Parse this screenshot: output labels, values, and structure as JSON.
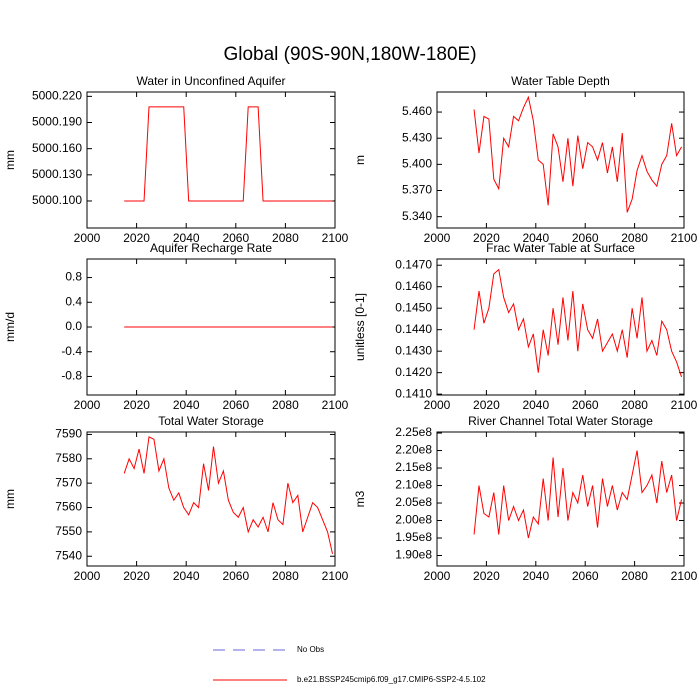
{
  "title": "Global (90S-90N,180W-180E)",
  "legend": [
    {
      "name": "No Obs",
      "color": "#6a6ad8",
      "dashed": true
    },
    {
      "name": "b.e21.BSSP245cmip6.f09_g17.CMIP6-SSP2-4.5.102",
      "color": "#ff0000",
      "dashed": false
    }
  ],
  "chart_data": [
    {
      "type": "line",
      "title": "Water in Unconfined Aquifer",
      "y_label": "mm",
      "color": "#ff0000",
      "x": [
        2015,
        2017,
        2019,
        2021,
        2023,
        2025,
        2027,
        2029,
        2031,
        2033,
        2035,
        2037,
        2039,
        2041,
        2043,
        2045,
        2047,
        2049,
        2051,
        2053,
        2055,
        2057,
        2059,
        2061,
        2063,
        2065,
        2067,
        2069,
        2071,
        2073,
        2075,
        2077,
        2079,
        2081,
        2083,
        2085,
        2087,
        2089,
        2091,
        2093,
        2095,
        2097,
        2099
      ],
      "values": [
        5000.1,
        5000.1,
        5000.1,
        5000.1,
        5000.1,
        5000.208,
        5000.208,
        5000.208,
        5000.208,
        5000.208,
        5000.208,
        5000.208,
        5000.208,
        5000.1,
        5000.1,
        5000.1,
        5000.1,
        5000.1,
        5000.1,
        5000.1,
        5000.1,
        5000.1,
        5000.1,
        5000.1,
        5000.1,
        5000.208,
        5000.208,
        5000.208,
        5000.1,
        5000.1,
        5000.1,
        5000.1,
        5000.1,
        5000.1,
        5000.1,
        5000.1,
        5000.1,
        5000.1,
        5000.1,
        5000.1,
        5000.1,
        5000.1,
        5000.1
      ],
      "xlim": [
        2000,
        2100
      ],
      "xticks": [
        2000,
        2020,
        2040,
        2060,
        2080,
        2100
      ],
      "ylim": [
        5000.069,
        5000.225
      ],
      "yticks": [
        {
          "value": 5000.1,
          "label": "5000.100"
        },
        {
          "value": 5000.13,
          "label": "5000.130"
        },
        {
          "value": 5000.16,
          "label": "5000.160"
        },
        {
          "value": 5000.19,
          "label": "5000.190"
        },
        {
          "value": 5000.22,
          "label": "5000.220"
        }
      ]
    },
    {
      "type": "line",
      "title": "Water Table Depth",
      "y_label": "m",
      "color": "#ff0000",
      "x": [
        2015,
        2017,
        2019,
        2021,
        2023,
        2025,
        2027,
        2029,
        2031,
        2033,
        2035,
        2037,
        2039,
        2041,
        2043,
        2045,
        2047,
        2049,
        2051,
        2053,
        2055,
        2057,
        2059,
        2061,
        2063,
        2065,
        2067,
        2069,
        2071,
        2073,
        2075,
        2077,
        2079,
        2081,
        2083,
        2085,
        2087,
        2089,
        2091,
        2093,
        2095,
        2097,
        2099
      ],
      "values": [
        5.463,
        5.413,
        5.455,
        5.452,
        5.383,
        5.372,
        5.43,
        5.42,
        5.455,
        5.45,
        5.465,
        5.477,
        5.45,
        5.405,
        5.4,
        5.353,
        5.435,
        5.42,
        5.38,
        5.43,
        5.375,
        5.433,
        5.395,
        5.425,
        5.42,
        5.405,
        5.425,
        5.39,
        5.42,
        5.38,
        5.436,
        5.345,
        5.36,
        5.393,
        5.41,
        5.392,
        5.382,
        5.375,
        5.4,
        5.41,
        5.447,
        5.41,
        5.42
      ],
      "xlim": [
        2000,
        2100
      ],
      "xticks": [
        2000,
        2020,
        2040,
        2060,
        2080,
        2100
      ],
      "ylim": [
        5.327,
        5.483
      ],
      "yticks": [
        {
          "value": 5.34,
          "label": "5.340"
        },
        {
          "value": 5.37,
          "label": "5.370"
        },
        {
          "value": 5.4,
          "label": "5.400"
        },
        {
          "value": 5.43,
          "label": "5.430"
        },
        {
          "value": 5.46,
          "label": "5.460"
        }
      ]
    },
    {
      "type": "line",
      "title": "Aquifer Recharge Rate",
      "y_label": "mm/d",
      "color": "#ff0000",
      "x": [
        2015,
        2017,
        2019,
        2021,
        2023,
        2025,
        2027,
        2029,
        2031,
        2033,
        2035,
        2037,
        2039,
        2041,
        2043,
        2045,
        2047,
        2049,
        2051,
        2053,
        2055,
        2057,
        2059,
        2061,
        2063,
        2065,
        2067,
        2069,
        2071,
        2073,
        2075,
        2077,
        2079,
        2081,
        2083,
        2085,
        2087,
        2089,
        2091,
        2093,
        2095,
        2097,
        2099
      ],
      "values": [
        0,
        0,
        0,
        0,
        0,
        0,
        0,
        0,
        0,
        0,
        0,
        0,
        0,
        0,
        0,
        0,
        0,
        0,
        0,
        0,
        0,
        0,
        0,
        0,
        0,
        0,
        0,
        0,
        0,
        0,
        0,
        0,
        0,
        0,
        0,
        0,
        0,
        0,
        0,
        0,
        0,
        0,
        0
      ],
      "xlim": [
        2000,
        2100
      ],
      "xticks": [
        2000,
        2020,
        2040,
        2060,
        2080,
        2100
      ],
      "ylim": [
        -1.1,
        1.1
      ],
      "yticks": [
        -0.8,
        -0.4,
        {
          "value": 0,
          "label": "0.0"
        },
        0.4,
        0.8
      ]
    },
    {
      "type": "line",
      "title": "Frac Water Table at Surface",
      "y_label": "unitless [0-1]",
      "color": "#ff0000",
      "x": [
        2015,
        2017,
        2019,
        2021,
        2023,
        2025,
        2027,
        2029,
        2031,
        2033,
        2035,
        2037,
        2039,
        2041,
        2043,
        2045,
        2047,
        2049,
        2051,
        2053,
        2055,
        2057,
        2059,
        2061,
        2063,
        2065,
        2067,
        2069,
        2071,
        2073,
        2075,
        2077,
        2079,
        2081,
        2083,
        2085,
        2087,
        2089,
        2091,
        2093,
        2095,
        2097,
        2099
      ],
      "values": [
        0.144,
        0.1458,
        0.1443,
        0.145,
        0.1466,
        0.1468,
        0.1455,
        0.1448,
        0.1452,
        0.144,
        0.1445,
        0.1432,
        0.1438,
        0.142,
        0.144,
        0.1428,
        0.145,
        0.1433,
        0.1455,
        0.1435,
        0.1458,
        0.143,
        0.1452,
        0.144,
        0.1436,
        0.1445,
        0.143,
        0.1434,
        0.1438,
        0.143,
        0.144,
        0.1427,
        0.145,
        0.1436,
        0.1455,
        0.143,
        0.1435,
        0.1428,
        0.1444,
        0.144,
        0.143,
        0.1425,
        0.1418
      ],
      "xlim": [
        2000,
        2100
      ],
      "xticks": [
        2000,
        2020,
        2040,
        2060,
        2080,
        2100
      ],
      "ylim": [
        0.14096,
        0.14729
      ],
      "yticks": [
        {
          "value": 0.141,
          "label": "0.1410"
        },
        {
          "value": 0.142,
          "label": "0.1420"
        },
        {
          "value": 0.143,
          "label": "0.1430"
        },
        {
          "value": 0.144,
          "label": "0.1440"
        },
        {
          "value": 0.145,
          "label": "0.1450"
        },
        {
          "value": 0.146,
          "label": "0.1460"
        },
        {
          "value": 0.147,
          "label": "0.1470"
        }
      ]
    },
    {
      "type": "line",
      "title": "Total Water Storage",
      "y_label": "mm",
      "color": "#ff0000",
      "x": [
        2015,
        2017,
        2019,
        2021,
        2023,
        2025,
        2027,
        2029,
        2031,
        2033,
        2035,
        2037,
        2039,
        2041,
        2043,
        2045,
        2047,
        2049,
        2051,
        2053,
        2055,
        2057,
        2059,
        2061,
        2063,
        2065,
        2067,
        2069,
        2071,
        2073,
        2075,
        2077,
        2079,
        2081,
        2083,
        2085,
        2087,
        2089,
        2091,
        2093,
        2095,
        2097,
        2099
      ],
      "values": [
        7574,
        7580,
        7576,
        7584,
        7574,
        7589,
        7588,
        7575,
        7580,
        7568,
        7563,
        7566,
        7560,
        7557,
        7562,
        7560,
        7578,
        7567,
        7585,
        7570,
        7575,
        7563,
        7558,
        7556,
        7560,
        7550,
        7555,
        7552,
        7556,
        7550,
        7562,
        7555,
        7553,
        7570,
        7562,
        7565,
        7550,
        7556,
        7562,
        7560,
        7555,
        7550,
        7541
      ],
      "xlim": [
        2000,
        2100
      ],
      "xticks": [
        2000,
        2020,
        2040,
        2060,
        2080,
        2100
      ],
      "ylim": [
        7536,
        7591
      ],
      "yticks": [
        7540,
        7550,
        7560,
        7570,
        7580,
        7590
      ]
    },
    {
      "type": "line",
      "title": "River Channel Total Water Storage",
      "y_label": "m3",
      "color": "#ff0000",
      "x": [
        2015,
        2017,
        2019,
        2021,
        2023,
        2025,
        2027,
        2029,
        2031,
        2033,
        2035,
        2037,
        2039,
        2041,
        2043,
        2045,
        2047,
        2049,
        2051,
        2053,
        2055,
        2057,
        2059,
        2061,
        2063,
        2065,
        2067,
        2069,
        2071,
        2073,
        2075,
        2077,
        2079,
        2081,
        2083,
        2085,
        2087,
        2089,
        2091,
        2093,
        2095,
        2097,
        2099
      ],
      "values": [
        196000000.0,
        210000000.0,
        202000000.0,
        201000000.0,
        208000000.0,
        196000000.0,
        210000000.0,
        200000000.0,
        204000000.0,
        200000000.0,
        203000000.0,
        195000000.0,
        201000000.0,
        199000000.0,
        212000000.0,
        200000000.0,
        218000000.0,
        201000000.0,
        215000000.0,
        200000000.0,
        208000000.0,
        205000000.0,
        213000000.0,
        204000000.0,
        210000000.0,
        198000000.0,
        212000000.0,
        204000000.0,
        210000000.0,
        203000000.0,
        208000000.0,
        206000000.0,
        213000000.0,
        220000000.0,
        208000000.0,
        210000000.0,
        213000000.0,
        205000000.0,
        217000000.0,
        208000000.0,
        213000000.0,
        200000000.0,
        206000000.0
      ],
      "xlim": [
        2000,
        2100
      ],
      "xticks": [
        2000,
        2020,
        2040,
        2060,
        2080,
        2100
      ],
      "ylim": [
        187000000.0,
        225300000.0
      ],
      "yticks": [
        {
          "value": 190000000.0,
          "label": "1.90e8"
        },
        {
          "value": 195000000.0,
          "label": "1.95e8"
        },
        {
          "value": 200000000.0,
          "label": "2.00e8"
        },
        {
          "value": 205000000.0,
          "label": "2.05e8"
        },
        {
          "value": 210000000.0,
          "label": "2.10e8"
        },
        {
          "value": 215000000.0,
          "label": "2.15e8"
        },
        {
          "value": 220000000.0,
          "label": "2.20e8"
        },
        {
          "value": 225000000.0,
          "label": "2.25e8"
        }
      ]
    }
  ]
}
